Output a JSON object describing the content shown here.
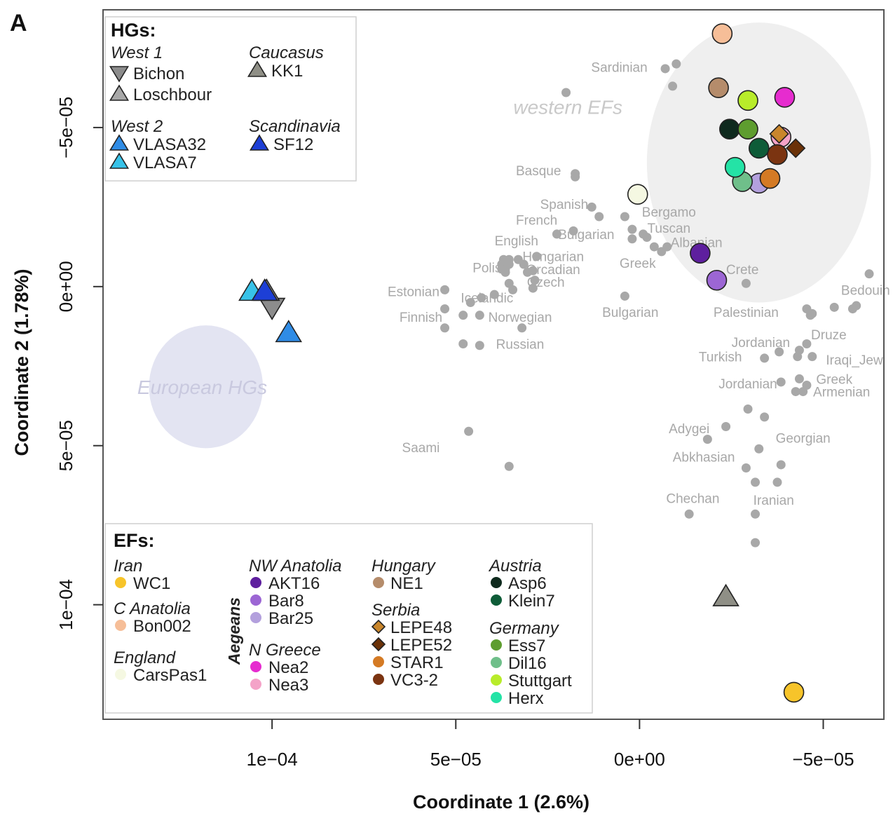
{
  "panel_label": "A",
  "colors": {
    "reference": "#a8a8a8",
    "hg_ellipse": "#e3e4f2",
    "ef_ellipse": "#efefef",
    "hg_label": "#c9c9df",
    "ef_label": "#c9c9c9"
  },
  "chart_data": {
    "type": "scatter",
    "title": "",
    "xlabel": "Coordinate 1 (2.6%)",
    "ylabel": "Coordinate 2 (1.78%)",
    "x_reversed": true,
    "y_reversed": true,
    "xlim": [
      0.000146,
      -6.65e-05
    ],
    "ylim": [
      -8.7e-05,
      0.000136
    ],
    "x_ticks": [
      {
        "value": 0.0001,
        "label": "1e−04"
      },
      {
        "value": 5e-05,
        "label": "5e−05"
      },
      {
        "value": 0,
        "label": "0e+00"
      },
      {
        "value": -5e-05,
        "label": "−5e−05"
      }
    ],
    "y_ticks": [
      {
        "value": -5e-05,
        "label": "−5e−05"
      },
      {
        "value": 0,
        "label": "0e+00"
      },
      {
        "value": 5e-05,
        "label": "5e−05"
      },
      {
        "value": 0.0001,
        "label": "1e−04"
      }
    ],
    "grid": false,
    "clusters": [
      {
        "label": "European HGs",
        "x": 0.000118,
        "y": 3.15e-05,
        "rx": 1.55e-05,
        "ry": 1.93e-05,
        "kind": "hg"
      },
      {
        "label": "western EFs",
        "x": -3.25e-05,
        "y": -3.9e-05,
        "rx": 3.05e-05,
        "ry": 4.4e-05,
        "kind": "ef"
      }
    ],
    "cluster_label_pos": [
      {
        "x": 0.000119,
        "y": 3.15e-05
      },
      {
        "x": 1.95e-05,
        "y": -5.65e-05
      }
    ],
    "reference_points": [
      [
        2e-05,
        -6.1e-05
      ],
      [
        -1e-05,
        -7e-05
      ],
      [
        -7e-06,
        -6.85e-05
      ],
      [
        -9e-06,
        -6.3e-05
      ],
      [
        1.75e-05,
        -3.55e-05
      ],
      [
        1.75e-05,
        -3.45e-05
      ],
      [
        1.3e-05,
        -2.5e-05
      ],
      [
        1.1e-05,
        -2.2e-05
      ],
      [
        4e-06,
        -2.2e-05
      ],
      [
        1.8e-05,
        -1.75e-05
      ],
      [
        2.25e-05,
        -1.65e-05
      ],
      [
        2e-06,
        -1.8e-05
      ],
      [
        -1e-06,
        -1.65e-05
      ],
      [
        2e-06,
        -1.5e-05
      ],
      [
        -2e-06,
        -1.55e-05
      ],
      [
        -4e-06,
        -1.25e-05
      ],
      [
        -7.5e-06,
        -1.25e-05
      ],
      [
        -6e-06,
        -1.1e-05
      ],
      [
        2.8e-05,
        -9.5e-06
      ],
      [
        3.3e-05,
        -8.5e-06
      ],
      [
        3.55e-05,
        -8.5e-06
      ],
      [
        3.7e-05,
        -8.5e-06
      ],
      [
        3.15e-05,
        -7e-06
      ],
      [
        3.55e-05,
        -7e-06
      ],
      [
        3.75e-05,
        -7e-06
      ],
      [
        3.65e-05,
        -5.5e-06
      ],
      [
        2.9e-05,
        -5e-06
      ],
      [
        3.05e-05,
        -4.5e-06
      ],
      [
        3.65e-05,
        -4.5e-06
      ],
      [
        3.75e-05,
        -5.5e-06
      ],
      [
        2.85e-05,
        -2e-06
      ],
      [
        3.55e-05,
        -1e-06
      ],
      [
        2.9e-05,
        5e-07
      ],
      [
        3.45e-05,
        1e-06
      ],
      [
        5.3e-05,
        1e-06
      ],
      [
        3.95e-05,
        2.5e-06
      ],
      [
        4.3e-05,
        3.5e-06
      ],
      [
        4.6e-05,
        5e-06
      ],
      [
        5.3e-05,
        7e-06
      ],
      [
        4.8e-05,
        9e-06
      ],
      [
        4.35e-05,
        9e-06
      ],
      [
        3.2e-05,
        1.3e-05
      ],
      [
        5.3e-05,
        1.3e-05
      ],
      [
        4.8e-05,
        1.8e-05
      ],
      [
        4.35e-05,
        1.85e-05
      ],
      [
        4e-06,
        3e-06
      ],
      [
        -2.9e-05,
        -1e-06
      ],
      [
        -5.3e-05,
        6.5e-06
      ],
      [
        -5.8e-05,
        7e-06
      ],
      [
        -6.25e-05,
        -4e-06
      ],
      [
        -5.9e-05,
        6e-06
      ],
      [
        -4.65e-05,
        9e-06
      ],
      [
        -4.55e-05,
        7e-06
      ],
      [
        -4.7e-05,
        8.5e-06
      ],
      [
        -4.55e-05,
        1.8e-05
      ],
      [
        -4.35e-05,
        2e-05
      ],
      [
        -4.3e-05,
        2.2e-05
      ],
      [
        -4.7e-05,
        2.2e-05
      ],
      [
        -3.8e-05,
        2.05e-05
      ],
      [
        -3.4e-05,
        2.25e-05
      ],
      [
        -4.35e-05,
        2.9e-05
      ],
      [
        -4.55e-05,
        3.1e-05
      ],
      [
        -4.45e-05,
        3.3e-05
      ],
      [
        -4.25e-05,
        3.3e-05
      ],
      [
        -3.85e-05,
        3e-05
      ],
      [
        -2.95e-05,
        3.85e-05
      ],
      [
        -3.4e-05,
        4.1e-05
      ],
      [
        -2.35e-05,
        4.4e-05
      ],
      [
        -1.85e-05,
        4.8e-05
      ],
      [
        -3.25e-05,
        5.1e-05
      ],
      [
        -3.85e-05,
        5.6e-05
      ],
      [
        -3.15e-05,
        6.15e-05
      ],
      [
        -2.9e-05,
        5.7e-05
      ],
      [
        -3.75e-05,
        6.15e-05
      ],
      [
        -1.35e-05,
        7.15e-05
      ],
      [
        -3.15e-05,
        7.15e-05
      ],
      [
        -3.15e-05,
        8.05e-05
      ],
      [
        4.65e-05,
        4.55e-05
      ],
      [
        3.55e-05,
        5.65e-05
      ]
    ],
    "reference_labels": [
      {
        "text": "Sardinian",
        "x": 5.5e-06,
        "y": -6.9e-05
      },
      {
        "text": "Basque",
        "x": 2.75e-05,
        "y": -3.65e-05
      },
      {
        "text": "Spanish",
        "x": 2.05e-05,
        "y": -2.6e-05
      },
      {
        "text": "Bergamo",
        "x": -8e-06,
        "y": -2.35e-05
      },
      {
        "text": "French",
        "x": 2.8e-05,
        "y": -2.1e-05
      },
      {
        "text": "Tuscan",
        "x": -8e-06,
        "y": -1.85e-05
      },
      {
        "text": "Bulgarian",
        "x": 1.45e-05,
        "y": -1.65e-05
      },
      {
        "text": "English",
        "x": 3.35e-05,
        "y": -1.45e-05
      },
      {
        "text": "Albanian",
        "x": -1.55e-05,
        "y": -1.4e-05
      },
      {
        "text": "Hungarian",
        "x": 2.35e-05,
        "y": -9.5e-06
      },
      {
        "text": "Greek",
        "x": 5e-07,
        "y": -7.5e-06
      },
      {
        "text": "Polish",
        "x": 4.05e-05,
        "y": -6e-06
      },
      {
        "text": "Orcadian",
        "x": 2.35e-05,
        "y": -5.5e-06
      },
      {
        "text": "Crete",
        "x": -2.8e-05,
        "y": -5.5e-06
      },
      {
        "text": "Czech",
        "x": 2.55e-05,
        "y": -1.5e-06
      },
      {
        "text": "Estonian",
        "x": 6.15e-05,
        "y": 1.5e-06
      },
      {
        "text": "Icelandic",
        "x": 4.15e-05,
        "y": 3.5e-06
      },
      {
        "text": "Bedouin",
        "x": -6.15e-05,
        "y": 1e-06
      },
      {
        "text": "Bulgarian",
        "x": 2.5e-06,
        "y": 8e-06
      },
      {
        "text": "Palestinian",
        "x": -2.9e-05,
        "y": 8e-06
      },
      {
        "text": "Finnish",
        "x": 5.95e-05,
        "y": 9.5e-06
      },
      {
        "text": "Norwegian",
        "x": 3.25e-05,
        "y": 9.5e-06
      },
      {
        "text": "Druze",
        "x": -5.15e-05,
        "y": 1.5e-05
      },
      {
        "text": "Jordanian",
        "x": -3.3e-05,
        "y": 1.75e-05
      },
      {
        "text": "Russian",
        "x": 3.25e-05,
        "y": 1.8e-05
      },
      {
        "text": "Turkish",
        "x": -2.2e-05,
        "y": 2.2e-05
      },
      {
        "text": "Iraqi_Jew",
        "x": -5.85e-05,
        "y": 2.3e-05
      },
      {
        "text": "Greek",
        "x": -5.3e-05,
        "y": 2.9e-05
      },
      {
        "text": "Jordanian",
        "x": -2.95e-05,
        "y": 3.05e-05
      },
      {
        "text": "Armenian",
        "x": -5.5e-05,
        "y": 3.3e-05
      },
      {
        "text": "Adygei",
        "x": -1.35e-05,
        "y": 4.45e-05
      },
      {
        "text": "Georgian",
        "x": -4.45e-05,
        "y": 4.75e-05
      },
      {
        "text": "Saami",
        "x": 5.95e-05,
        "y": 5.05e-05
      },
      {
        "text": "Abkhasian",
        "x": -1.75e-05,
        "y": 5.35e-05
      },
      {
        "text": "Chechan",
        "x": -1.45e-05,
        "y": 6.65e-05
      },
      {
        "text": "Iranian",
        "x": -3.65e-05,
        "y": 6.7e-05
      }
    ],
    "series": [
      {
        "name": "Bichon",
        "group": "West 1",
        "shape": "triangle-down",
        "color": "#8c8c8c",
        "x": 0.0001,
        "y": 6.5e-06
      },
      {
        "name": "Loschbour",
        "group": "West 1",
        "shape": "triangle",
        "color": "#a8a8a8",
        "x": 0.0001015,
        "y": 1.5e-06
      },
      {
        "name": "KK1",
        "group": "Caucasus",
        "shape": "triangle",
        "color": "#8f8f86",
        "x": -2.35e-05,
        "y": 9.75e-05
      },
      {
        "name": "VLASA32",
        "group": "West 2",
        "shape": "triangle",
        "color": "#2f8ce6",
        "x": 9.55e-05,
        "y": 1.45e-05
      },
      {
        "name": "VLASA7",
        "group": "West 2",
        "shape": "triangle",
        "color": "#37c2e8",
        "x": 0.0001055,
        "y": 1.5e-06
      },
      {
        "name": "SF12",
        "group": "Scandinavia",
        "shape": "triangle",
        "color": "#1d3fd6",
        "x": 0.000102,
        "y": 1.5e-06
      },
      {
        "name": "WC1",
        "group": "Iran",
        "shape": "circle",
        "color": "#f7c42a",
        "x": -4.2e-05,
        "y": 0.0001275
      },
      {
        "name": "Bon002",
        "group": "C Anatolia",
        "shape": "circle",
        "color": "#f6be98",
        "x": -2.25e-05,
        "y": -7.95e-05
      },
      {
        "name": "CarsPas1",
        "group": "England",
        "shape": "circle",
        "color": "#f5f8e2",
        "x": 5e-07,
        "y": -2.9e-05
      },
      {
        "name": "AKT16",
        "group": "NW Anatolia",
        "shape": "circle",
        "color": "#5e1f9e",
        "x": -1.65e-05,
        "y": -1.05e-05
      },
      {
        "name": "Bar8",
        "group": "Aegeans",
        "shape": "circle",
        "color": "#9c66d4",
        "x": -2.1e-05,
        "y": -2e-06
      },
      {
        "name": "Bar25",
        "group": "Aegeans",
        "shape": "circle",
        "color": "#b3a0dd",
        "x": -3.25e-05,
        "y": -3.25e-05
      },
      {
        "name": "Nea2",
        "group": "N Greece",
        "shape": "circle",
        "color": "#e62ccf",
        "x": -3.95e-05,
        "y": -5.95e-05
      },
      {
        "name": "Nea3",
        "group": "N Greece",
        "shape": "circle",
        "color": "#f4a3c8",
        "x": -3.85e-05,
        "y": -4.7e-05
      },
      {
        "name": "NE1",
        "group": "Hungary",
        "shape": "circle",
        "color": "#b58c6b",
        "x": -2.15e-05,
        "y": -6.25e-05
      },
      {
        "name": "LEPE48",
        "group": "Serbia",
        "shape": "diamond",
        "color": "#c9862c",
        "x": -3.8e-05,
        "y": -4.8e-05
      },
      {
        "name": "LEPE52",
        "group": "Serbia",
        "shape": "diamond",
        "color": "#6b3208",
        "x": -4.25e-05,
        "y": -4.35e-05
      },
      {
        "name": "STAR1",
        "group": "Serbia",
        "shape": "circle",
        "color": "#d47a24",
        "x": -3.55e-05,
        "y": -3.4e-05
      },
      {
        "name": "VC3-2",
        "group": "Serbia",
        "shape": "circle",
        "color": "#7b3411",
        "x": -3.75e-05,
        "y": -4.15e-05
      },
      {
        "name": "Asp6",
        "group": "Austria",
        "shape": "circle",
        "color": "#0f2a1e",
        "x": -2.45e-05,
        "y": -4.95e-05
      },
      {
        "name": "Klein7",
        "group": "Austria",
        "shape": "circle",
        "color": "#0e5c38",
        "x": -3.25e-05,
        "y": -4.35e-05
      },
      {
        "name": "Ess7",
        "group": "Germany",
        "shape": "circle",
        "color": "#5e9d2f",
        "x": -2.95e-05,
        "y": -4.95e-05
      },
      {
        "name": "Dil16",
        "group": "Germany",
        "shape": "circle",
        "color": "#6fbf8a",
        "x": -2.8e-05,
        "y": -3.3e-05
      },
      {
        "name": "Stuttgart",
        "group": "Germany",
        "shape": "circle",
        "color": "#b8ec2a",
        "x": -2.95e-05,
        "y": -5.85e-05
      },
      {
        "name": "Herx",
        "group": "Germany",
        "shape": "circle",
        "color": "#24e3a6",
        "x": -2.6e-05,
        "y": -3.75e-05
      }
    ]
  },
  "legend_hg": {
    "title": "HGs:",
    "groups": [
      {
        "name": "West 1",
        "items": [
          "Bichon",
          "Loschbour"
        ]
      },
      {
        "name": "Caucasus",
        "items": [
          "KK1"
        ]
      },
      {
        "name": "West 2",
        "items": [
          "VLASA32",
          "VLASA7"
        ]
      },
      {
        "name": "Scandinavia",
        "items": [
          "SF12"
        ]
      }
    ]
  },
  "legend_ef": {
    "title": "EFs:",
    "side_label": "Aegeans",
    "groups": [
      {
        "name": "Iran",
        "items": [
          "WC1"
        ]
      },
      {
        "name": "C Anatolia",
        "items": [
          "Bon002"
        ]
      },
      {
        "name": "England",
        "items": [
          "CarsPas1"
        ]
      },
      {
        "name": "NW Anatolia",
        "items": [
          "AKT16",
          "Bar8",
          "Bar25"
        ]
      },
      {
        "name": "N Greece",
        "items": [
          "Nea2",
          "Nea3"
        ]
      },
      {
        "name": "Hungary",
        "items": [
          "NE1"
        ]
      },
      {
        "name": "Serbia",
        "items": [
          "LEPE48",
          "LEPE52",
          "STAR1",
          "VC3-2"
        ]
      },
      {
        "name": "Austria",
        "items": [
          "Asp6",
          "Klein7"
        ]
      },
      {
        "name": "Germany",
        "items": [
          "Ess7",
          "Dil16",
          "Stuttgart",
          "Herx"
        ]
      }
    ]
  }
}
